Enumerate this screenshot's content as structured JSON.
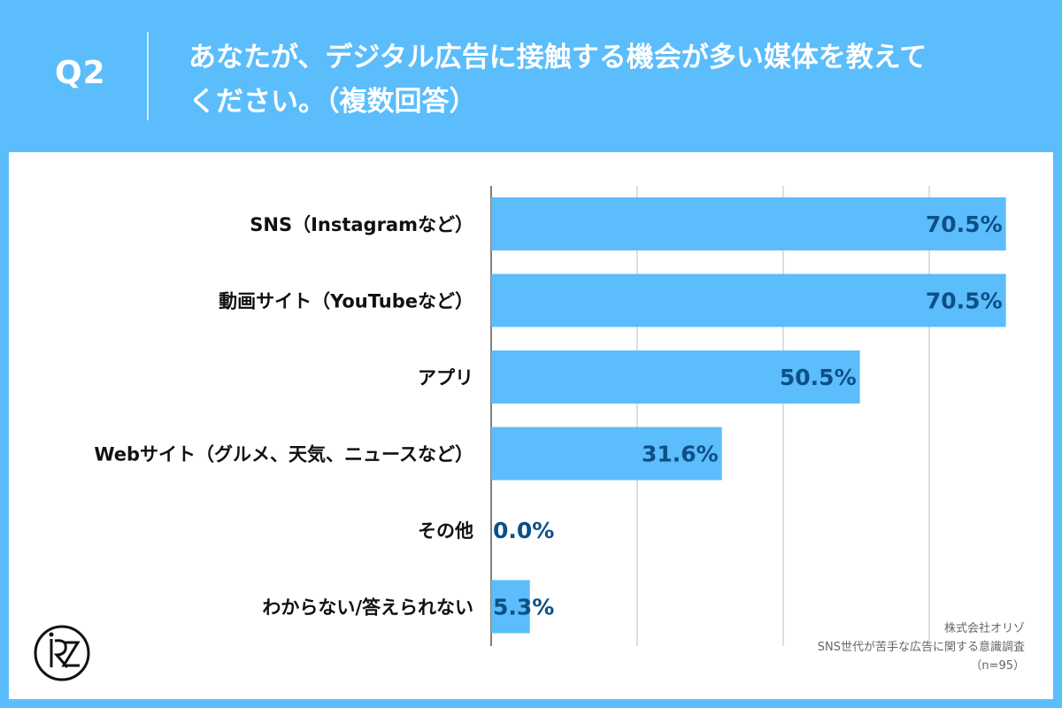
{
  "header": {
    "q_label": "Q2",
    "title_line1": "あなたが、デジタル広告に接触する機会が多い媒体を教えて",
    "title_line2": "ください。（複数回答）"
  },
  "chart_data": {
    "type": "bar",
    "orientation": "horizontal",
    "categories": [
      "SNS（Instagramなど）",
      "動画サイト（YouTubeなど）",
      "アプリ",
      "Webサイト（グルメ、天気、ニュースなど）",
      "その他",
      "わからない/答えられない"
    ],
    "values": [
      70.5,
      70.5,
      50.5,
      31.6,
      0.0,
      5.3
    ],
    "value_labels": [
      "70.5%",
      "70.5%",
      "50.5%",
      "31.6%",
      "0.0%",
      "5.3%"
    ],
    "xlim": [
      0,
      80
    ],
    "grid": true,
    "bar_color": "#5bbdfb",
    "label_color": "#0d4f86"
  },
  "source": {
    "company": "株式会社オリゾ",
    "survey": "SNS世代が苦手な広告に関する意識調査",
    "sample": "（n=95）"
  },
  "logo": {
    "icon": "orizo-logo-icon"
  }
}
